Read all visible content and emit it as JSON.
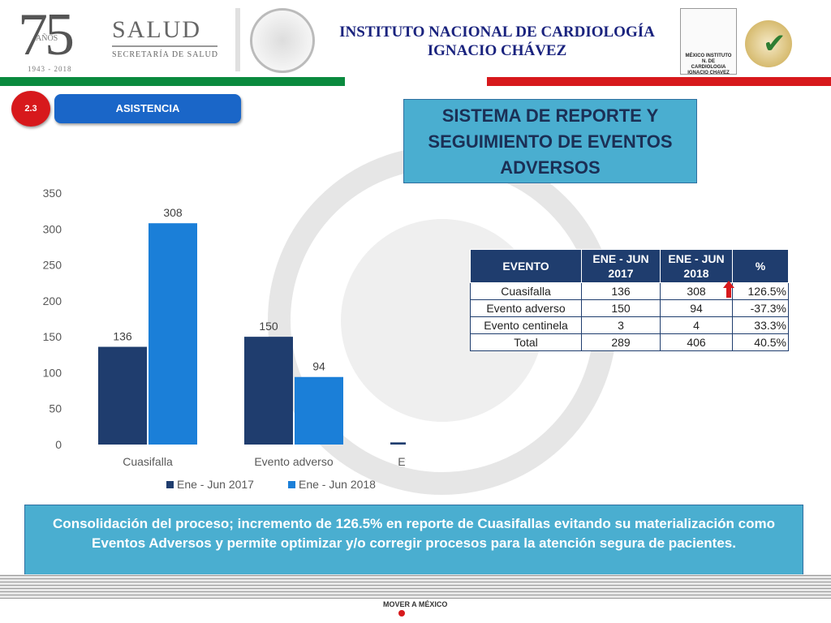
{
  "header": {
    "logo_number": "75",
    "logo_suffix": "AÑOS",
    "logo_years": "1943 - 2018",
    "salud": "SALUD",
    "secretaria": "SECRETARÍA DE SALUD",
    "institute_line1": "INSTITUTO NACIONAL DE CARDIOLOGÍA",
    "institute_line2": "IGNACIO CHÁVEZ",
    "inst_logo_text": "MÉXICO INSTITUTO N. DE CARDIOLOGIA IGNACIO CHAVEZ"
  },
  "section": {
    "number": "2.3",
    "label": "ASISTENCIA"
  },
  "title": "SISTEMA DE REPORTE Y SEGUIMIENTO DE EVENTOS ADVERSOS",
  "chart_data": {
    "type": "bar",
    "categories": [
      "Cuasifalla",
      "Evento adverso",
      "Evento centinela"
    ],
    "series": [
      {
        "name": "Ene - Jun 2017",
        "values": [
          136,
          150,
          3
        ],
        "color": "#1f3d6e"
      },
      {
        "name": "Ene - Jun 2018",
        "values": [
          308,
          94,
          4
        ],
        "color": "#1b7fd8"
      }
    ],
    "ylim": [
      0,
      350
    ],
    "yticks": [
      0,
      50,
      100,
      150,
      200,
      250,
      300,
      350
    ],
    "legend": "bottom",
    "grid": false
  },
  "table": {
    "headers": [
      "EVENTO",
      "ENE - JUN 2017",
      "ENE - JUN 2018",
      "%"
    ],
    "rows": [
      [
        "Cuasifalla",
        "136",
        "308",
        "126.5%"
      ],
      [
        "Evento adverso",
        "150",
        "94",
        "-37.3%"
      ],
      [
        "Evento centinela",
        "3",
        "4",
        "33.3%"
      ],
      [
        "Total",
        "289",
        "406",
        "40.5%"
      ]
    ]
  },
  "note": "Consolidación del proceso; incremento de 126.5% en reporte de Cuasifallas evitando su materialización como Eventos Adversos y permite optimizar y/o corregir procesos para la atención segura de pacientes.",
  "footer": {
    "mover": "MOVER A MÉXICO"
  },
  "colors": {
    "green": "#0a8a3e",
    "red": "#d7191c",
    "title_bg": "#4aaed0",
    "accent": "#1a66c8"
  }
}
